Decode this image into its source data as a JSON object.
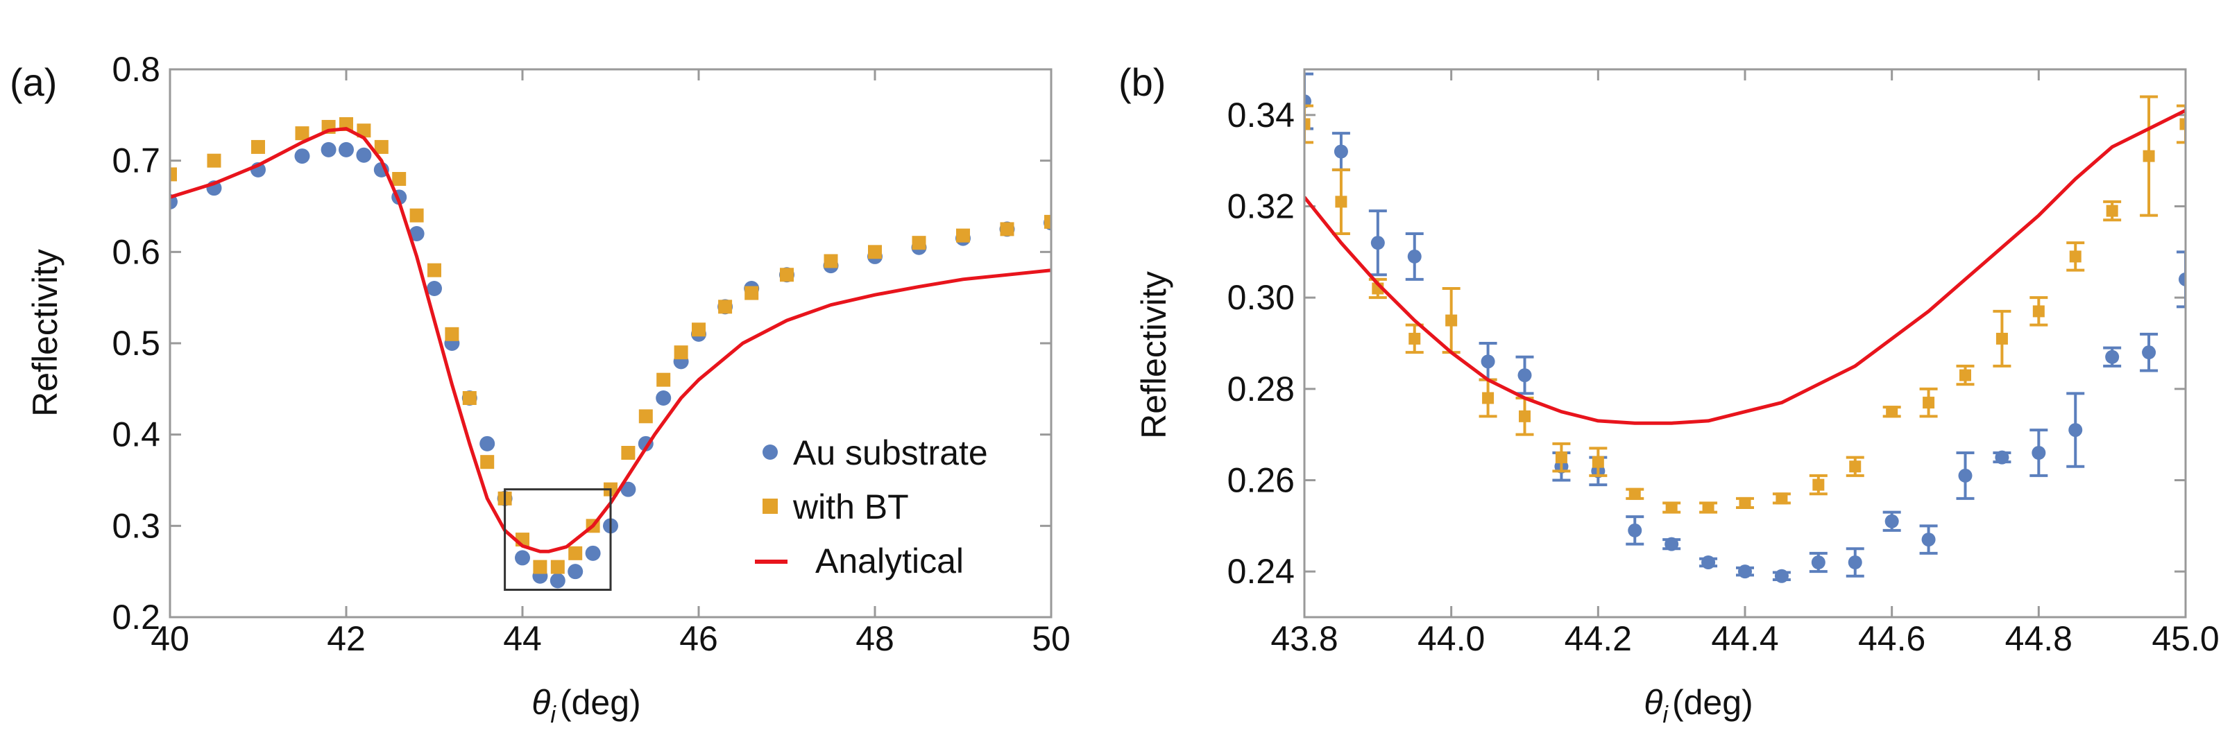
{
  "colors": {
    "blue": "#5b7fbd",
    "orange": "#e3a22b",
    "red": "#e8141c",
    "frame": "#999999",
    "box": "#333333"
  },
  "chart_data": [
    {
      "panel": "(a)",
      "type": "scatter",
      "xlabel_main": "θ",
      "xlabel_sub": "i",
      "xlabel_unit": "(deg)",
      "ylabel": "Reflectivity",
      "xlim": [
        40,
        50
      ],
      "ylim": [
        0.2,
        0.8
      ],
      "xticks": [
        40,
        42,
        44,
        46,
        48,
        50
      ],
      "xtick_labels": [
        "40",
        "42",
        "44",
        "46",
        "48",
        "50"
      ],
      "yticks": [
        0.2,
        0.3,
        0.4,
        0.5,
        0.6,
        0.7,
        0.8
      ],
      "ytick_labels": [
        "0.2",
        "0.3",
        "0.4",
        "0.5",
        "0.6",
        "0.7",
        "0.8"
      ],
      "zoom_box": {
        "x": [
          43.8,
          45.0
        ],
        "y": [
          0.23,
          0.34
        ]
      },
      "legend_position": "bottom-right",
      "series": [
        {
          "name": "Au substrate",
          "kind": "points",
          "marker": "circle",
          "color_key": "blue",
          "x": [
            40.0,
            40.5,
            41.0,
            41.5,
            41.8,
            42.0,
            42.2,
            42.4,
            42.6,
            42.8,
            43.0,
            43.2,
            43.4,
            43.6,
            43.8,
            44.0,
            44.2,
            44.4,
            44.6,
            44.8,
            45.0,
            45.2,
            45.4,
            45.6,
            45.8,
            46.0,
            46.3,
            46.6,
            47.0,
            47.5,
            48.0,
            48.5,
            49.0,
            49.5,
            50.0
          ],
          "y": [
            0.655,
            0.67,
            0.69,
            0.705,
            0.712,
            0.712,
            0.706,
            0.69,
            0.66,
            0.62,
            0.56,
            0.5,
            0.44,
            0.39,
            0.33,
            0.265,
            0.245,
            0.24,
            0.25,
            0.27,
            0.3,
            0.34,
            0.39,
            0.44,
            0.48,
            0.51,
            0.54,
            0.56,
            0.575,
            0.585,
            0.595,
            0.605,
            0.615,
            0.625,
            0.632
          ]
        },
        {
          "name": "with BT",
          "kind": "points",
          "marker": "square",
          "color_key": "orange",
          "x": [
            40.0,
            40.5,
            41.0,
            41.5,
            41.8,
            42.0,
            42.2,
            42.4,
            42.6,
            42.8,
            43.0,
            43.2,
            43.4,
            43.6,
            43.8,
            44.0,
            44.2,
            44.4,
            44.6,
            44.8,
            45.0,
            45.2,
            45.4,
            45.6,
            45.8,
            46.0,
            46.3,
            46.6,
            47.0,
            47.5,
            48.0,
            48.5,
            49.0,
            49.5,
            50.0
          ],
          "y": [
            0.685,
            0.7,
            0.715,
            0.73,
            0.737,
            0.74,
            0.733,
            0.715,
            0.68,
            0.64,
            0.58,
            0.51,
            0.44,
            0.37,
            0.33,
            0.285,
            0.255,
            0.255,
            0.27,
            0.3,
            0.34,
            0.38,
            0.42,
            0.46,
            0.49,
            0.515,
            0.54,
            0.555,
            0.575,
            0.59,
            0.6,
            0.61,
            0.618,
            0.625,
            0.633
          ]
        },
        {
          "name": "Analytical",
          "kind": "line",
          "color_key": "red",
          "x": [
            40.0,
            40.5,
            41.0,
            41.5,
            41.8,
            42.0,
            42.2,
            42.4,
            42.6,
            42.8,
            43.0,
            43.2,
            43.4,
            43.6,
            43.8,
            44.0,
            44.2,
            44.3,
            44.5,
            44.8,
            45.0,
            45.2,
            45.5,
            45.8,
            46.0,
            46.5,
            47.0,
            47.5,
            48.0,
            48.5,
            49.0,
            49.5,
            50.0
          ],
          "y": [
            0.66,
            0.675,
            0.695,
            0.72,
            0.733,
            0.735,
            0.725,
            0.7,
            0.655,
            0.595,
            0.525,
            0.455,
            0.39,
            0.33,
            0.295,
            0.278,
            0.272,
            0.272,
            0.277,
            0.3,
            0.325,
            0.355,
            0.4,
            0.44,
            0.46,
            0.5,
            0.525,
            0.542,
            0.553,
            0.562,
            0.57,
            0.575,
            0.58
          ]
        }
      ]
    },
    {
      "panel": "(b)",
      "type": "scatter",
      "xlabel_main": "θ",
      "xlabel_sub": "i",
      "xlabel_unit": "(deg)",
      "ylabel": "Reflectivity",
      "xlim": [
        43.8,
        45.0
      ],
      "ylim": [
        0.23,
        0.35
      ],
      "xticks": [
        43.8,
        44.0,
        44.2,
        44.4,
        44.6,
        44.8,
        45.0
      ],
      "xtick_labels": [
        "43.8",
        "44.0",
        "44.2",
        "44.4",
        "44.6",
        "44.8",
        "45.0"
      ],
      "yticks": [
        0.24,
        0.26,
        0.28,
        0.3,
        0.32,
        0.34
      ],
      "ytick_labels": [
        "0.24",
        "0.26",
        "0.28",
        "0.30",
        "0.32",
        "0.34"
      ],
      "series": [
        {
          "name": "Au substrate",
          "kind": "errorbar",
          "marker": "circle",
          "color_key": "blue",
          "x": [
            43.8,
            43.85,
            43.9,
            43.95,
            44.05,
            44.1,
            44.15,
            44.2,
            44.25,
            44.3,
            44.35,
            44.4,
            44.45,
            44.5,
            44.55,
            44.6,
            44.65,
            44.7,
            44.75,
            44.8,
            44.85,
            44.9,
            44.95,
            45.0
          ],
          "y": [
            0.343,
            0.332,
            0.312,
            0.309,
            0.286,
            0.283,
            0.263,
            0.262,
            0.249,
            0.246,
            0.242,
            0.24,
            0.239,
            0.242,
            0.242,
            0.251,
            0.247,
            0.261,
            0.265,
            0.266,
            0.271,
            0.287,
            0.288,
            0.304
          ],
          "err": [
            0.006,
            0.004,
            0.007,
            0.005,
            0.004,
            0.004,
            0.003,
            0.003,
            0.003,
            0.001,
            0.0008,
            0.0008,
            0.0008,
            0.002,
            0.003,
            0.002,
            0.003,
            0.005,
            0.001,
            0.005,
            0.008,
            0.002,
            0.004,
            0.006
          ]
        },
        {
          "name": "with BT",
          "kind": "errorbar",
          "marker": "square",
          "color_key": "orange",
          "x": [
            43.8,
            43.85,
            43.9,
            43.95,
            44.0,
            44.05,
            44.1,
            44.15,
            44.2,
            44.25,
            44.3,
            44.35,
            44.4,
            44.45,
            44.5,
            44.55,
            44.6,
            44.65,
            44.7,
            44.75,
            44.8,
            44.85,
            44.9,
            44.95,
            45.0
          ],
          "y": [
            0.338,
            0.321,
            0.302,
            0.291,
            0.295,
            0.278,
            0.274,
            0.265,
            0.264,
            0.257,
            0.254,
            0.254,
            0.255,
            0.256,
            0.259,
            0.263,
            0.275,
            0.277,
            0.283,
            0.291,
            0.297,
            0.309,
            0.319,
            0.331,
            0.338
          ],
          "err": [
            0.004,
            0.007,
            0.002,
            0.003,
            0.007,
            0.004,
            0.004,
            0.003,
            0.003,
            0.001,
            0.001,
            0.001,
            0.001,
            0.001,
            0.002,
            0.002,
            0.001,
            0.003,
            0.002,
            0.006,
            0.003,
            0.003,
            0.002,
            0.013,
            0.004
          ]
        },
        {
          "name": "Analytical",
          "kind": "line",
          "color_key": "red",
          "x": [
            43.8,
            43.85,
            43.9,
            43.95,
            44.0,
            44.05,
            44.1,
            44.15,
            44.2,
            44.25,
            44.3,
            44.35,
            44.4,
            44.45,
            44.5,
            44.55,
            44.6,
            44.65,
            44.7,
            44.75,
            44.8,
            44.85,
            44.9,
            44.95,
            45.0
          ],
          "y": [
            0.322,
            0.312,
            0.303,
            0.295,
            0.288,
            0.282,
            0.278,
            0.275,
            0.273,
            0.2725,
            0.2725,
            0.273,
            0.275,
            0.277,
            0.281,
            0.285,
            0.291,
            0.297,
            0.304,
            0.311,
            0.318,
            0.326,
            0.333,
            0.337,
            0.341
          ]
        }
      ]
    }
  ]
}
